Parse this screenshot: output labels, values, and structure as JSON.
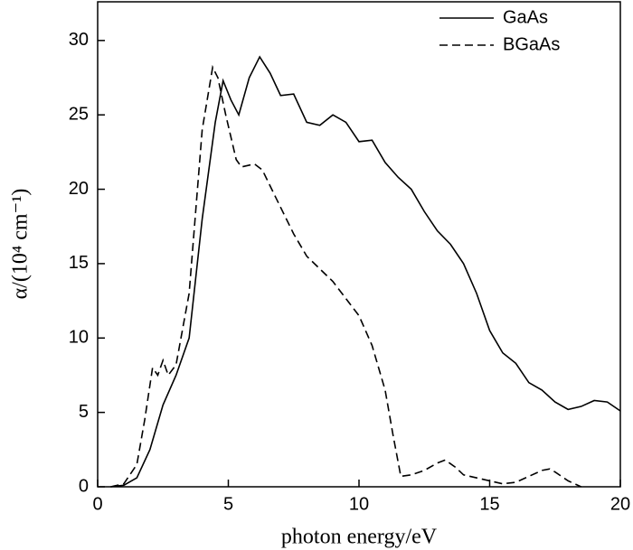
{
  "chart_data": {
    "type": "line",
    "xlabel": "photon energy/eV",
    "ylabel": "α/(10⁴ cm⁻¹)",
    "xlim": [
      0,
      20
    ],
    "ylim": [
      0,
      32.6
    ],
    "xticks": [
      0,
      5,
      10,
      15,
      20
    ],
    "yticks": [
      0,
      5,
      10,
      15,
      20,
      25,
      30
    ],
    "legend": "upper right",
    "series": [
      {
        "name": "GaAs",
        "color": "#000000",
        "linestyle": "solid",
        "x": [
          0.5,
          1,
          1.5,
          2,
          2.5,
          3,
          3.5,
          4,
          4.5,
          4.8,
          5.1,
          5.4,
          5.8,
          6.2,
          6.6,
          7,
          7.5,
          8,
          8.5,
          9,
          9.5,
          10,
          10.5,
          11,
          11.5,
          12,
          12.5,
          13,
          13.5,
          14,
          14.5,
          15,
          15.5,
          16,
          16.5,
          17,
          17.5,
          18,
          18.5,
          19,
          19.5,
          20
        ],
        "values": [
          0,
          0.1,
          0.6,
          2.5,
          5.5,
          7.5,
          10,
          18,
          24.5,
          27.3,
          26,
          25,
          27.5,
          28.9,
          27.8,
          26.3,
          26.4,
          24.5,
          24.3,
          25,
          24.5,
          23.2,
          23.3,
          21.8,
          20.8,
          20,
          18.5,
          17.2,
          16.3,
          15,
          13,
          10.5,
          9,
          8.3,
          7,
          6.5,
          5.7,
          5.2,
          5.4,
          5.8,
          5.7,
          5.1
        ]
      },
      {
        "name": "BGaAs",
        "color": "#000000",
        "linestyle": "dashed",
        "x": [
          0.5,
          1,
          1.5,
          1.8,
          2.1,
          2.3,
          2.5,
          2.7,
          3,
          3.5,
          4,
          4.4,
          4.6,
          4.9,
          5.3,
          5.5,
          6,
          6.3,
          6.8,
          7.5,
          8,
          9,
          10,
          10.5,
          11,
          11.3,
          11.6,
          12,
          12.5,
          13,
          13.3,
          13.7,
          14,
          15,
          15.5,
          16,
          16.5,
          17,
          17.3,
          17.5,
          18,
          18.5
        ],
        "values": [
          0,
          0.2,
          1.5,
          4.5,
          8,
          7.5,
          8.5,
          7.5,
          8.2,
          13,
          24,
          28.2,
          27.5,
          25,
          22,
          21.5,
          21.7,
          21.3,
          19.5,
          17,
          15.5,
          13.8,
          11.5,
          9.5,
          6.5,
          3.5,
          0.7,
          0.8,
          1.1,
          1.6,
          1.8,
          1.3,
          0.8,
          0.4,
          0.2,
          0.3,
          0.7,
          1.1,
          1.2,
          1.0,
          0.4,
          0
        ]
      }
    ]
  }
}
